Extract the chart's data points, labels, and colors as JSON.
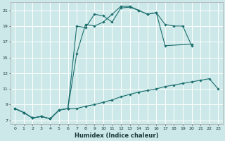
{
  "xlabel": "Humidex (Indice chaleur)",
  "background_color": "#cde8e8",
  "grid_color": "#ffffff",
  "line_color": "#1a6e6e",
  "xlim": [
    -0.5,
    23.5
  ],
  "ylim": [
    6.5,
    22.0
  ],
  "xtick_vals": [
    0,
    1,
    2,
    3,
    4,
    5,
    6,
    7,
    8,
    9,
    10,
    11,
    12,
    13,
    14,
    15,
    16,
    17,
    18,
    19,
    20,
    21,
    22,
    23
  ],
  "xtick_labels": [
    "0",
    "1",
    "2",
    "3",
    "4",
    "5",
    "6",
    "7",
    "8",
    "9",
    "10",
    "11",
    "12",
    "13",
    "14",
    "15",
    "16",
    "17",
    "18",
    "19",
    "20",
    "21",
    "22",
    "23"
  ],
  "ytick_vals": [
    7,
    9,
    11,
    13,
    15,
    17,
    19,
    21
  ],
  "ytick_labels": [
    "7",
    "9",
    "11",
    "13",
    "15",
    "17",
    "19",
    "21"
  ],
  "series": [
    {
      "x": [
        0,
        1,
        2,
        3,
        4,
        5,
        6,
        7,
        8,
        9,
        10,
        11,
        12,
        13,
        14,
        15,
        16,
        17,
        18,
        19,
        20,
        21,
        22,
        23
      ],
      "y": [
        8.5,
        8.0,
        7.3,
        7.5,
        7.2,
        8.3,
        8.5,
        8.5,
        8.8,
        9.0,
        9.3,
        9.6,
        10.0,
        10.3,
        10.6,
        10.8,
        11.0,
        11.3,
        11.5,
        11.7,
        11.9,
        12.1,
        12.3,
        11.0
      ]
    },
    {
      "x": [
        0,
        1,
        2,
        3,
        4,
        5,
        6,
        7,
        8,
        9,
        10,
        11,
        12,
        13,
        14,
        15,
        16,
        17,
        18,
        19,
        20
      ],
      "y": [
        8.5,
        8.0,
        7.3,
        7.5,
        7.2,
        8.3,
        8.5,
        19.0,
        18.8,
        20.5,
        20.3,
        19.5,
        21.3,
        21.4,
        21.0,
        20.5,
        20.7,
        16.5,
        null,
        null,
        16.7
      ]
    },
    {
      "x": [
        0,
        1,
        2,
        3,
        4,
        5,
        6,
        7,
        8,
        9,
        10,
        11,
        12,
        13,
        14,
        15,
        16,
        17,
        18,
        19,
        20,
        21,
        22,
        23
      ],
      "y": [
        8.5,
        8.0,
        7.3,
        7.5,
        7.2,
        8.3,
        8.5,
        15.5,
        19.2,
        19.0,
        19.5,
        20.5,
        21.5,
        21.5,
        21.0,
        20.5,
        20.7,
        19.2,
        19.0,
        19.0,
        16.5,
        null,
        null,
        null
      ]
    }
  ]
}
